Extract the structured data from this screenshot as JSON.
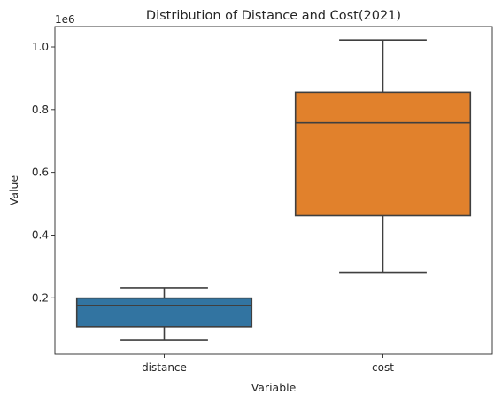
{
  "chart_data": {
    "type": "box",
    "title": "Distribution of Distance and Cost(2021)",
    "xlabel": "Variable",
    "ylabel": "Value",
    "y_offset_label": "1e6",
    "ylim": [
      0.02,
      1.065
    ],
    "y_ticks": [
      0.2,
      0.4,
      0.6,
      0.8,
      1.0
    ],
    "y_tick_labels": [
      "0.2",
      "0.4",
      "0.6",
      "0.8",
      "1.0"
    ],
    "grid": false,
    "categories": [
      "distance",
      "cost"
    ],
    "series": [
      {
        "category": "distance",
        "whisker_low": 0.065,
        "q1": 0.108,
        "median": 0.176,
        "q3": 0.199,
        "whisker_high": 0.232,
        "color": "#3274a1"
      },
      {
        "category": "cost",
        "whisker_low": 0.281,
        "q1": 0.462,
        "median": 0.758,
        "q3": 0.855,
        "whisker_high": 1.022,
        "color": "#e1812c"
      }
    ]
  }
}
